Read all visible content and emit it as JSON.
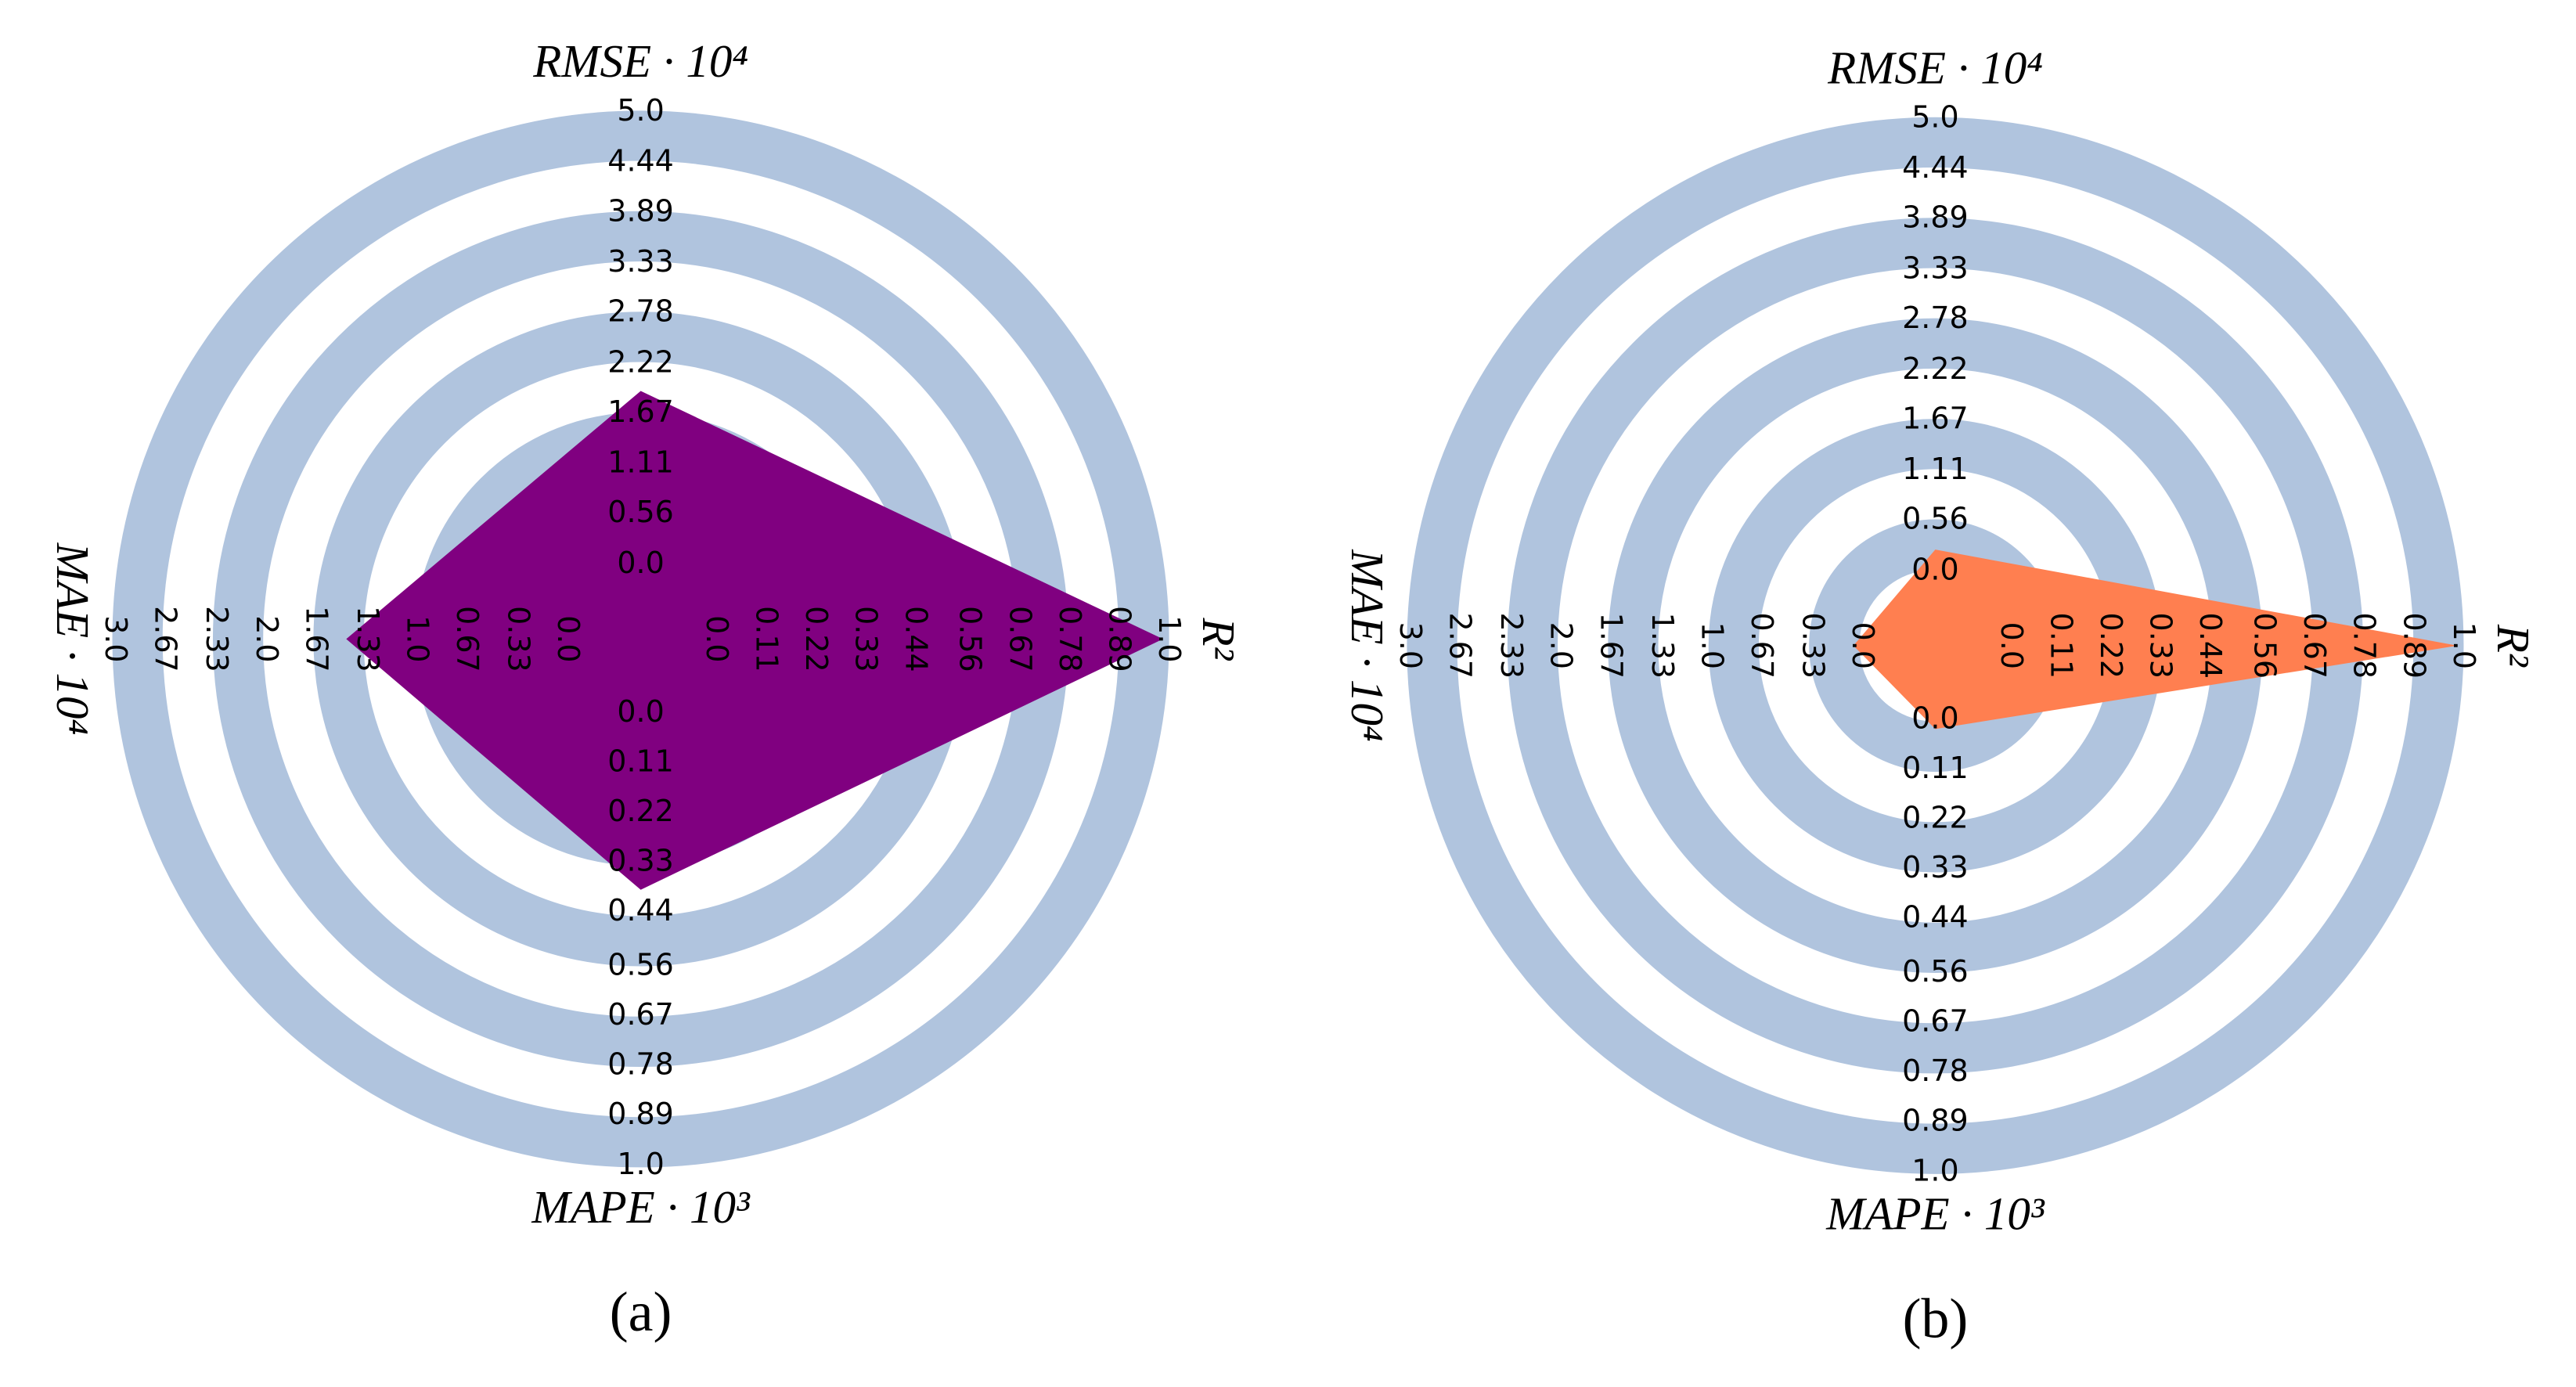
{
  "chart_data": [
    {
      "type": "radar",
      "title": "(a)",
      "axes": [
        {
          "name": "RMSE · 10⁴",
          "lim": [
            0,
            5
          ],
          "ticks": [
            {
              "value": 0,
              "label": "0.0"
            },
            0.56,
            1.11,
            1.67,
            2.22,
            2.78,
            3.33,
            3.89,
            4.44,
            {
              "value": 5,
              "label": "5.0"
            }
          ]
        },
        {
          "name": "R²",
          "lim": [
            0,
            1
          ],
          "ticks": [
            {
              "value": 0,
              "label": "0.0"
            },
            0.11,
            0.22,
            0.33,
            0.44,
            0.56,
            0.67,
            0.78,
            0.89,
            {
              "value": 1,
              "label": "1.0"
            }
          ]
        },
        {
          "name": "MAPE · 10³",
          "lim": [
            0,
            1
          ],
          "ticks": [
            {
              "value": 0,
              "label": "0.0"
            },
            0.11,
            0.22,
            0.33,
            0.44,
            0.56,
            0.67,
            0.78,
            0.89,
            {
              "value": 1,
              "label": "1.0"
            }
          ]
        },
        {
          "name": "MAE · 10⁴",
          "lim": [
            0,
            3
          ],
          "ticks": [
            {
              "value": 0,
              "label": "0.0"
            },
            0.33,
            0.67,
            {
              "value": 1,
              "label": "1.0"
            },
            1.33,
            1.67,
            {
              "value": 2,
              "label": "2.0"
            },
            2.33,
            2.67,
            {
              "value": 3,
              "label": "3.0"
            }
          ]
        }
      ],
      "series": [
        {
          "color": "#800080",
          "values": [
            1.92,
            0.99,
            0.39,
            1.46
          ]
        }
      ]
    },
    {
      "type": "radar",
      "title": "(b)",
      "axes": [
        {
          "name": "RMSE · 10⁴",
          "lim": [
            0,
            5
          ],
          "ticks": [
            {
              "value": 0,
              "label": "0.0"
            },
            0.56,
            1.11,
            1.67,
            2.22,
            2.78,
            3.33,
            3.89,
            4.44,
            {
              "value": 5,
              "label": "5.0"
            }
          ]
        },
        {
          "name": "R²",
          "lim": [
            0,
            1
          ],
          "ticks": [
            {
              "value": 0,
              "label": "0.0"
            },
            0.11,
            0.22,
            0.33,
            0.44,
            0.56,
            0.67,
            0.78,
            0.89,
            {
              "value": 1,
              "label": "1.0"
            }
          ]
        },
        {
          "name": "MAPE · 10³",
          "lim": [
            0,
            1
          ],
          "ticks": [
            {
              "value": 0,
              "label": "0.0"
            },
            0.11,
            0.22,
            0.33,
            0.44,
            0.56,
            0.67,
            0.78,
            0.89,
            {
              "value": 1,
              "label": "1.0"
            }
          ]
        },
        {
          "name": "MAE · 10⁴",
          "lim": [
            0,
            3
          ],
          "ticks": [
            {
              "value": 0,
              "label": "0.0"
            },
            0.33,
            0.67,
            {
              "value": 1,
              "label": "1.0"
            },
            1.33,
            1.67,
            {
              "value": 2,
              "label": "2.0"
            },
            2.33,
            2.67,
            {
              "value": 3,
              "label": "3.0"
            }
          ]
        }
      ],
      "series": [
        {
          "color": "#ff7f50",
          "values": [
            0.24,
            0.99,
            0.02,
            0.05
          ]
        }
      ]
    }
  ]
}
